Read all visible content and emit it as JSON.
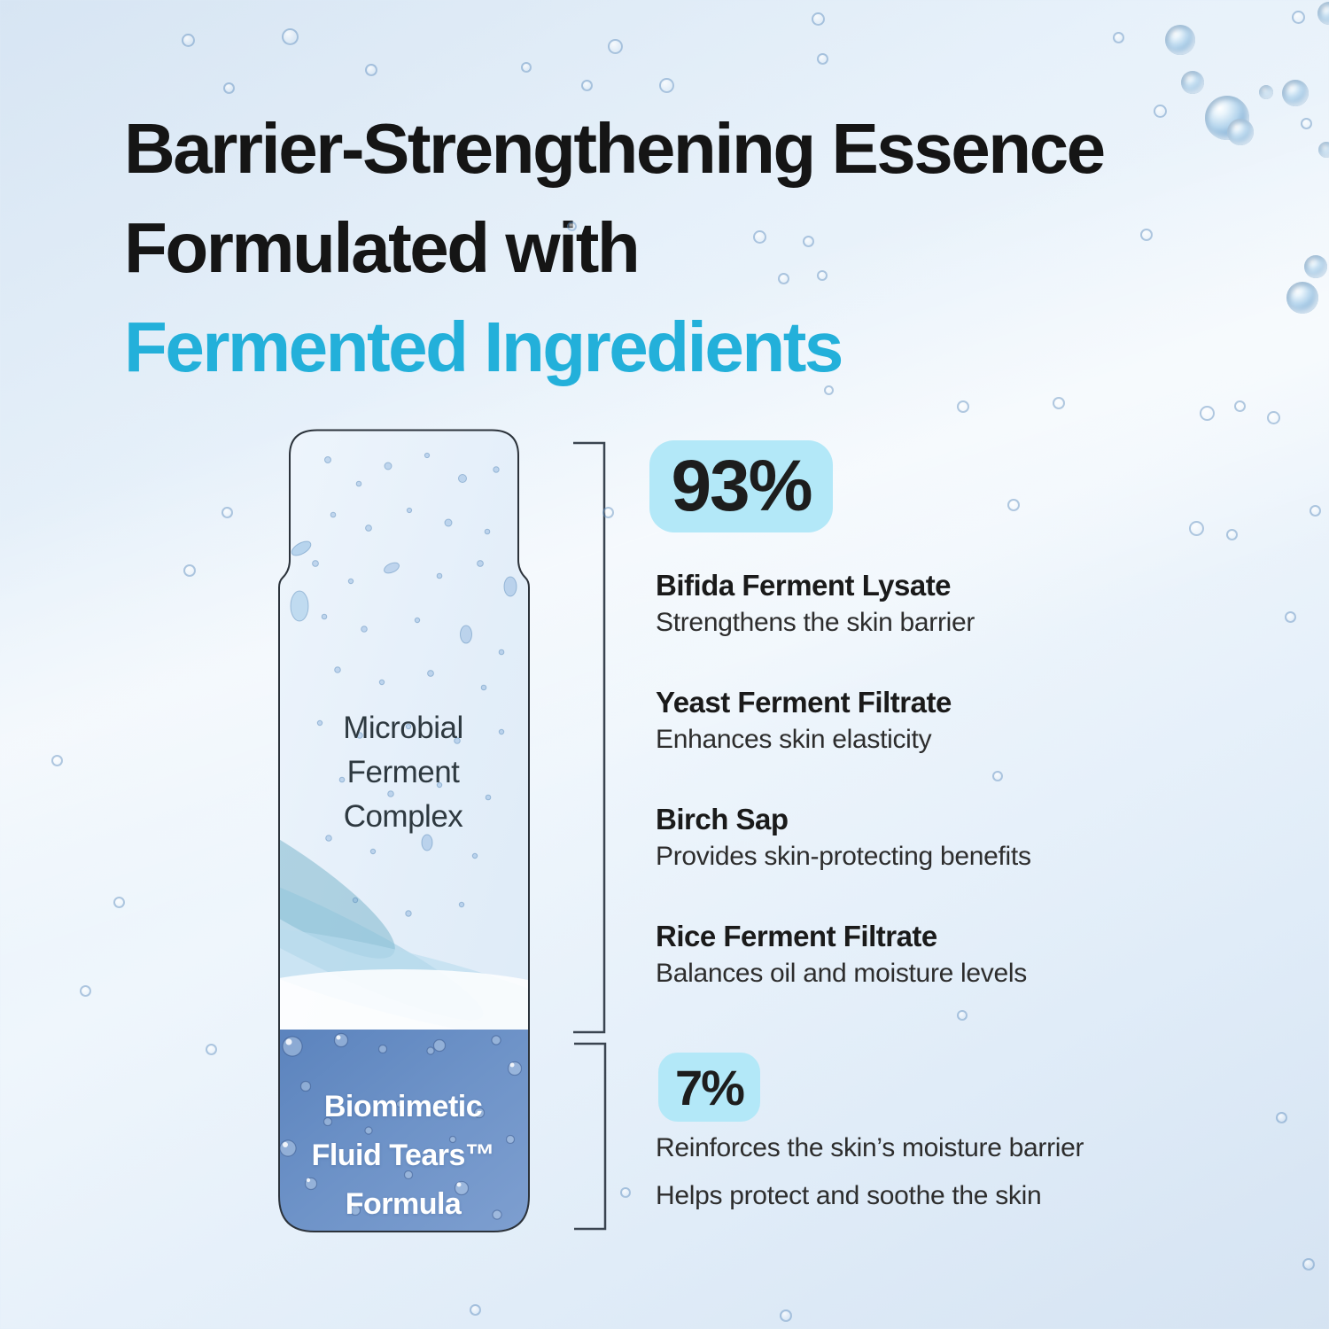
{
  "title": {
    "line1": "Barrier-Strengthening Essence",
    "line2": "Formulated with",
    "line3": "Fermented Ingredients"
  },
  "colors": {
    "accent_cyan": "#23b0da",
    "percent_chip_bg": "#b3e8f8",
    "blue_section": "#6e93c8",
    "background": "#e3eef9"
  },
  "bottle": {
    "top_label_lines": [
      "Microbial",
      "Ferment",
      "Complex"
    ],
    "bottom_label_lines": [
      "Biomimetic",
      "Fluid Tears™",
      "Formula"
    ]
  },
  "composition": {
    "main": {
      "percent": "93%",
      "ingredients": [
        {
          "name": "Bifida Ferment Lysate",
          "benefit": "Strengthens the skin barrier"
        },
        {
          "name": "Yeast Ferment Filtrate",
          "benefit": "Enhances skin elasticity"
        },
        {
          "name": "Birch Sap",
          "benefit": "Provides skin-protecting benefits"
        },
        {
          "name": "Rice Ferment Filtrate",
          "benefit": "Balances oil and moisture levels"
        }
      ]
    },
    "secondary": {
      "percent": "7%",
      "benefits": [
        "Reinforces the skin’s moisture barrier",
        "Helps protect and soothe the skin"
      ]
    }
  }
}
